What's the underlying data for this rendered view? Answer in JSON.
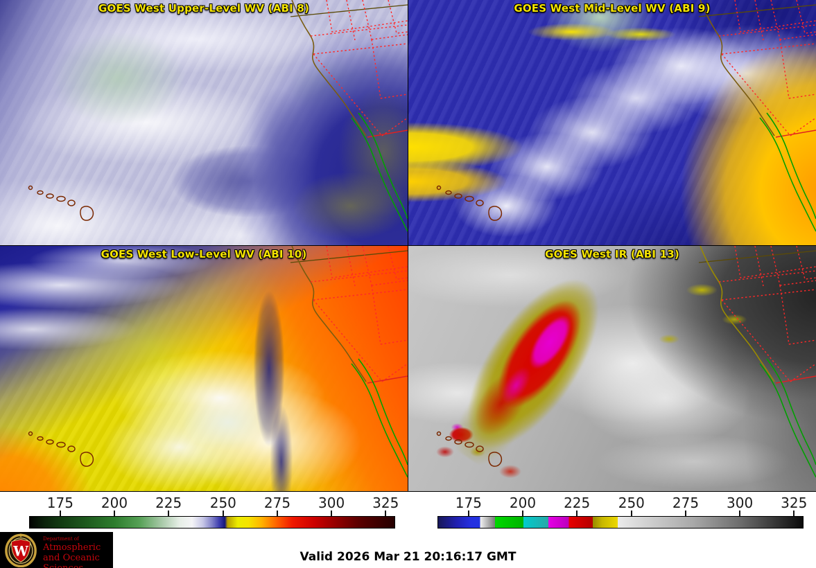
{
  "panels": [
    {
      "id": "upper_wv",
      "title": "GOES West Upper-Level WV (ABI 8)"
    },
    {
      "id": "mid_wv",
      "title": "GOES West Mid-Level WV (ABI 9)"
    },
    {
      "id": "low_wv",
      "title": "GOES West Low-Level WV (ABI 10)"
    },
    {
      "id": "ir",
      "title": "GOES West IR (ABI 13)"
    }
  ],
  "colorbars": {
    "ticks": [
      "175",
      "200",
      "225",
      "250",
      "275",
      "300",
      "325"
    ],
    "tick_positions_pct": [
      8.5,
      23.3,
      38.1,
      53.0,
      67.8,
      82.6,
      97.4
    ],
    "left": {
      "name": "water-vapor-temperature-scale",
      "stops": [
        {
          "p": 0,
          "c": "#030303"
        },
        {
          "p": 4,
          "c": "#0b220b"
        },
        {
          "p": 8.5,
          "c": "#123a12"
        },
        {
          "p": 16,
          "c": "#1f5c1f"
        },
        {
          "p": 23.3,
          "c": "#2e7d2e"
        },
        {
          "p": 30,
          "c": "#55a055"
        },
        {
          "p": 36,
          "c": "#a6c8a6"
        },
        {
          "p": 41,
          "c": "#e6eee6"
        },
        {
          "p": 44.5,
          "c": "#f4f4f6"
        },
        {
          "p": 47.5,
          "c": "#c6c6e6"
        },
        {
          "p": 50,
          "c": "#8080c8"
        },
        {
          "p": 52,
          "c": "#3c3cae"
        },
        {
          "p": 53.5,
          "c": "#16167a"
        },
        {
          "p": 54.2,
          "c": "#b89e00"
        },
        {
          "p": 57,
          "c": "#ecec00"
        },
        {
          "p": 60,
          "c": "#f5e300"
        },
        {
          "p": 63.5,
          "c": "#ffb400"
        },
        {
          "p": 67.8,
          "c": "#ff6000"
        },
        {
          "p": 72,
          "c": "#f01800"
        },
        {
          "p": 78,
          "c": "#cc0000"
        },
        {
          "p": 82.6,
          "c": "#a00000"
        },
        {
          "p": 90,
          "c": "#5c0000"
        },
        {
          "p": 100,
          "c": "#250000"
        }
      ]
    },
    "right": {
      "name": "ir-brightness-temperature-scale",
      "stops": [
        {
          "p": 0,
          "c": "#181858"
        },
        {
          "p": 5,
          "c": "#2020b0"
        },
        {
          "p": 9,
          "c": "#2530e0"
        },
        {
          "p": 11.5,
          "c": "#2233e0"
        },
        {
          "p": 11.5,
          "c": "#f2f2f2"
        },
        {
          "p": 15.6,
          "c": "#787878"
        },
        {
          "p": 15.6,
          "c": "#00d800"
        },
        {
          "p": 23.4,
          "c": "#00b400"
        },
        {
          "p": 23.4,
          "c": "#00cccc"
        },
        {
          "p": 30.2,
          "c": "#28a8a8"
        },
        {
          "p": 30.2,
          "c": "#e600e6"
        },
        {
          "p": 35.8,
          "c": "#bc00bc"
        },
        {
          "p": 35.8,
          "c": "#e80000"
        },
        {
          "p": 42.4,
          "c": "#b40000"
        },
        {
          "p": 42.4,
          "c": "#968a00"
        },
        {
          "p": 45,
          "c": "#c8b800"
        },
        {
          "p": 49.2,
          "c": "#ecd800"
        },
        {
          "p": 49.2,
          "c": "#ebebeb"
        },
        {
          "p": 60,
          "c": "#c8c8c8"
        },
        {
          "p": 70,
          "c": "#a8a8a8"
        },
        {
          "p": 82.6,
          "c": "#6e6e6e"
        },
        {
          "p": 92,
          "c": "#383838"
        },
        {
          "p": 100,
          "c": "#0a0a0a"
        }
      ]
    }
  },
  "footer": {
    "valid_label": "Valid 2026 Mar 21 20:16:17 GMT",
    "logo": {
      "line1": "Department of",
      "line2": "Atmospheric",
      "line3": "and Oceanic Sciences",
      "letter": "W"
    }
  },
  "colors": {
    "panel_title": "#f5e400",
    "tick_label": "#1c1c1c",
    "valid_text": "#000000",
    "uw_red": "#c5050c",
    "logo_bg": "#000000",
    "state_border": "#ff2828",
    "coastline": "#7a5c10",
    "baja_coastline": "#00a000",
    "hawaii_outline": "#7a2800"
  }
}
